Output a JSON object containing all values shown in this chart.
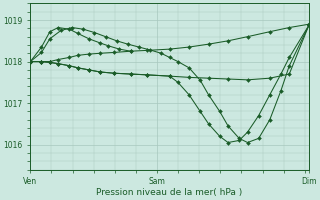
{
  "bg_color": "#cce8e0",
  "grid_color": "#a8c8be",
  "line_color": "#1a5c28",
  "marker_color": "#1a5c28",
  "xlabel": "Pression niveau de la mer( hPa )",
  "xlabel_color": "#1a5c28",
  "xtick_labels": [
    "Ven",
    "Sam",
    "Dim"
  ],
  "xtick_positions": [
    0.0,
    0.455,
    1.0
  ],
  "ytick_labels": [
    "1016",
    "1017",
    "1018",
    "1019"
  ],
  "ytick_values": [
    1016,
    1017,
    1018,
    1019
  ],
  "ylim": [
    1015.4,
    1019.4
  ],
  "xlim": [
    0.0,
    1.0
  ],
  "series": [
    {
      "x": [
        0.0,
        0.04,
        0.07,
        0.1,
        0.14,
        0.17,
        0.21,
        0.25,
        0.3,
        0.36,
        0.42,
        0.5,
        0.57,
        0.64,
        0.71,
        0.78,
        0.86,
        0.93,
        1.0
      ],
      "y": [
        1018.0,
        1018.0,
        1018.0,
        1018.05,
        1018.1,
        1018.15,
        1018.18,
        1018.2,
        1018.22,
        1018.25,
        1018.27,
        1018.3,
        1018.35,
        1018.42,
        1018.5,
        1018.6,
        1018.72,
        1018.82,
        1018.9
      ]
    },
    {
      "x": [
        0.0,
        0.04,
        0.07,
        0.1,
        0.14,
        0.17,
        0.21,
        0.25,
        0.3,
        0.36,
        0.42,
        0.5,
        0.57,
        0.64,
        0.71,
        0.78,
        0.86,
        0.93,
        1.0
      ],
      "y": [
        1018.0,
        1018.0,
        1017.98,
        1017.95,
        1017.9,
        1017.85,
        1017.8,
        1017.75,
        1017.72,
        1017.7,
        1017.68,
        1017.65,
        1017.62,
        1017.6,
        1017.58,
        1017.56,
        1017.6,
        1017.7,
        1018.87
      ]
    },
    {
      "x": [
        0.0,
        0.04,
        0.07,
        0.1,
        0.14,
        0.17,
        0.21,
        0.25,
        0.3,
        0.36,
        0.42,
        0.5,
        0.53,
        0.57,
        0.61,
        0.64,
        0.68,
        0.71,
        0.75,
        0.78,
        0.82,
        0.86,
        0.9,
        0.93,
        1.0
      ],
      "y": [
        1018.0,
        1018.0,
        1017.98,
        1017.95,
        1017.9,
        1017.85,
        1017.8,
        1017.75,
        1017.72,
        1017.7,
        1017.68,
        1017.65,
        1017.5,
        1017.2,
        1016.8,
        1016.5,
        1016.2,
        1016.05,
        1016.1,
        1016.3,
        1016.7,
        1017.2,
        1017.7,
        1018.1,
        1018.87
      ]
    },
    {
      "x": [
        0.0,
        0.04,
        0.07,
        0.11,
        0.15,
        0.19,
        0.23,
        0.27,
        0.31,
        0.35,
        0.39,
        0.43,
        0.47,
        0.5,
        0.53,
        0.57,
        0.61,
        0.64,
        0.68,
        0.71,
        0.75,
        0.78,
        0.82,
        0.86,
        0.9,
        0.93,
        1.0
      ],
      "y": [
        1018.0,
        1018.22,
        1018.55,
        1018.75,
        1018.82,
        1018.78,
        1018.7,
        1018.6,
        1018.5,
        1018.42,
        1018.35,
        1018.28,
        1018.2,
        1018.1,
        1018.0,
        1017.85,
        1017.55,
        1017.2,
        1016.8,
        1016.45,
        1016.15,
        1016.05,
        1016.15,
        1016.6,
        1017.3,
        1017.9,
        1018.87
      ]
    },
    {
      "x": [
        0.0,
        0.04,
        0.07,
        0.1,
        0.14,
        0.17,
        0.21,
        0.25,
        0.28,
        0.32,
        0.36
      ],
      "y": [
        1018.0,
        1018.35,
        1018.72,
        1018.82,
        1018.78,
        1018.68,
        1018.55,
        1018.45,
        1018.38,
        1018.3,
        1018.25
      ]
    }
  ]
}
